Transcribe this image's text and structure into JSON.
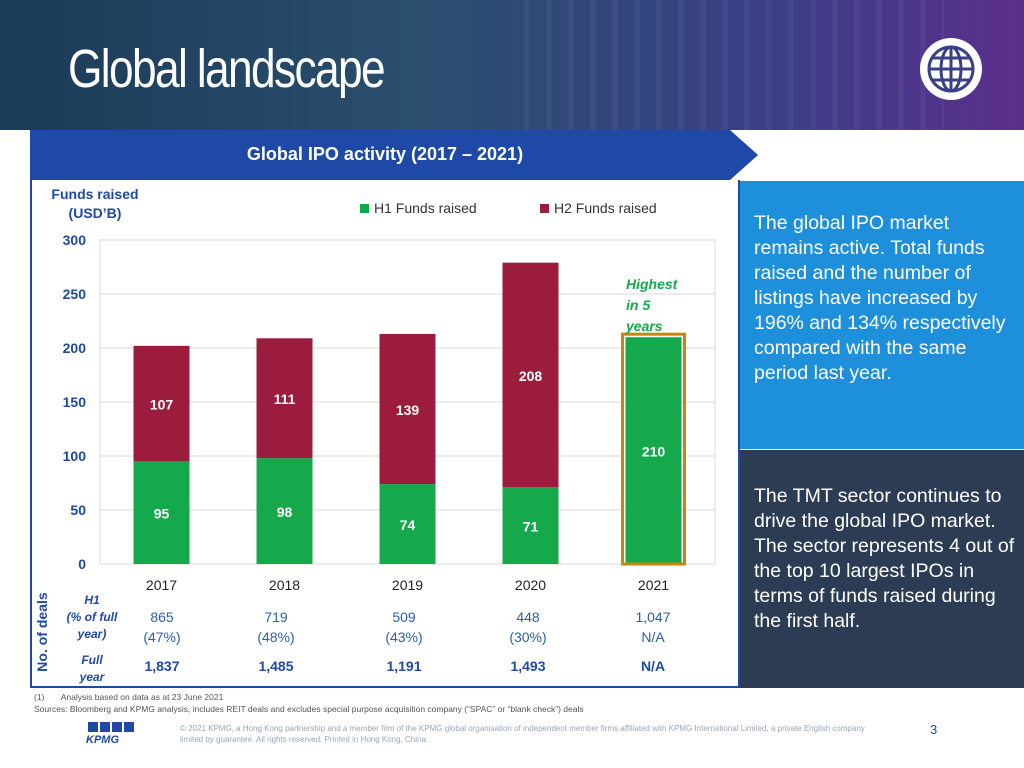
{
  "header": {
    "title": "Global landscape"
  },
  "chart_panel": {
    "band_title": "Global IPO activity (2017 – 2021)",
    "funds_label_line1": "Funds raised",
    "funds_label_line2": "(USD’B)",
    "highest_note": [
      "Highest",
      "in 5",
      "years"
    ]
  },
  "chart_data": {
    "type": "bar",
    "stacked": true,
    "categories": [
      "2017",
      "2018",
      "2019",
      "2020",
      "2021"
    ],
    "series": [
      {
        "name": "H1 Funds raised",
        "values": [
          95,
          98,
          74,
          71,
          210
        ],
        "color": "#16a94b"
      },
      {
        "name": "H2 Funds raised",
        "values": [
          107,
          111,
          139,
          208,
          null
        ],
        "color": "#9b1c3c"
      }
    ],
    "ylim": [
      0,
      300
    ],
    "yticks": [
      "0",
      "50",
      "100",
      "150",
      "200",
      "250",
      "300"
    ],
    "ylabel": "Funds raised (USD’B)",
    "highlight_category": "2021",
    "highlight_color": "#c8860a",
    "grid": true,
    "legend": "top"
  },
  "deals": {
    "axis_label": "No. of deals",
    "h1_label": [
      "H1",
      "(% of full",
      "year)"
    ],
    "full_label": [
      "Full",
      "year"
    ],
    "h1_counts": [
      "865",
      "719",
      "509",
      "448",
      "1,047"
    ],
    "h1_pct": [
      "(47%)",
      "(48%)",
      "(43%)",
      "(30%)",
      "N/A"
    ],
    "full_year": [
      "1,837",
      "1,485",
      "1,191",
      "1,493",
      "N/A"
    ]
  },
  "panels": {
    "top_text": "The global IPO market remains active. Total funds raised and the number of listings have increased by 196% and 134% respectively compared with the same period last year.",
    "bottom_text": "The TMT sector continues to drive the global IPO market. The sector represents 4 out of the top 10 largest IPOs in terms of funds raised during the first half."
  },
  "footer": {
    "note_num": "(1)",
    "note": "Analysis based on data as at 23 June 2021",
    "sources": "Sources: Bloomberg and KPMG analysis, includes REIT deals and excludes special purpose acquisition company (“SPAC” or “blank check”) deals",
    "copyright": "© 2021 KPMG, a Hong Kong partnership and a member firm of the KPMG global organisation of independent member firms affiliated with KPMG International Limited, a private English company limited by guarantee. All rights reserved. Printed in Hong Kong, China.",
    "page": "3",
    "logo_text": "KPMG"
  },
  "colors": {
    "accent_blue": "#1e49a6",
    "green": "#16a94b",
    "maroon": "#9b1c3c",
    "panel_blue": "#1e8fdb",
    "panel_dark": "#2b3c54"
  },
  "icons": {
    "header": "globe-icon"
  }
}
